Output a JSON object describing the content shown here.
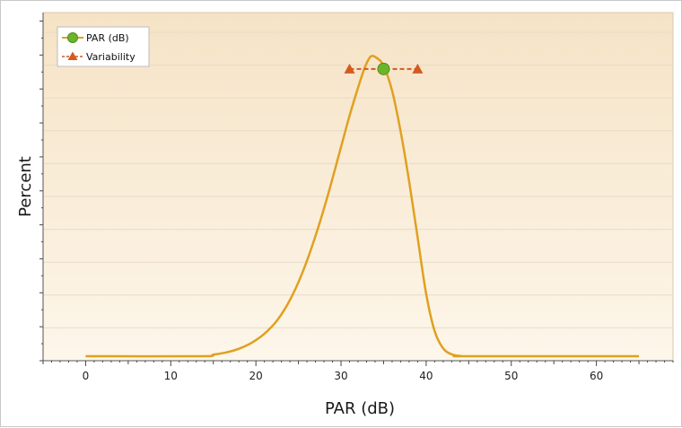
{
  "chart_data": {
    "type": "line",
    "xlabel": "PAR (dB)",
    "ylabel": "Percent",
    "xlim": [
      -5,
      69
    ],
    "ylim": [
      0,
      1
    ],
    "x_ticks": [
      0,
      10,
      20,
      30,
      40,
      50,
      60
    ],
    "x_tick_labels": [
      "0",
      "10",
      "20",
      "30",
      "40",
      "50",
      "60"
    ],
    "grid": "horizontal",
    "legend_position": "top-left",
    "legend": [
      "PAR (dB)",
      "Variability"
    ],
    "series": [
      {
        "name": "PAR (dB)",
        "kind": "distribution-curve",
        "x": [
          0,
          13.5,
          15,
          16.5,
          18,
          19.5,
          21,
          22.5,
          24,
          25.5,
          27,
          28.5,
          30,
          31,
          32,
          32.8,
          33.5,
          34.2,
          35,
          36,
          37,
          38,
          39,
          40,
          41,
          42,
          43,
          44,
          45,
          65
        ],
        "values": [
          0,
          0,
          0.005,
          0.012,
          0.024,
          0.043,
          0.072,
          0.115,
          0.18,
          0.27,
          0.385,
          0.52,
          0.67,
          0.77,
          0.86,
          0.925,
          0.96,
          0.955,
          0.93,
          0.85,
          0.72,
          0.56,
          0.38,
          0.2,
          0.08,
          0.025,
          0.006,
          0.001,
          0,
          0
        ]
      },
      {
        "name": "PAR (dB)",
        "kind": "marker",
        "x": [
          35
        ],
        "values": [
          0.92
        ]
      },
      {
        "name": "Variability",
        "kind": "range",
        "x": [
          31,
          39
        ],
        "values": [
          0.92,
          0.92
        ]
      }
    ],
    "colors": {
      "curve": "#e0a020",
      "marker": "#6cb52a",
      "variability": "#d45a22",
      "plot_bg_top": "#f6e3c6",
      "plot_bg_bottom": "#fdf6ea",
      "grid": "#e8dcc4"
    }
  }
}
